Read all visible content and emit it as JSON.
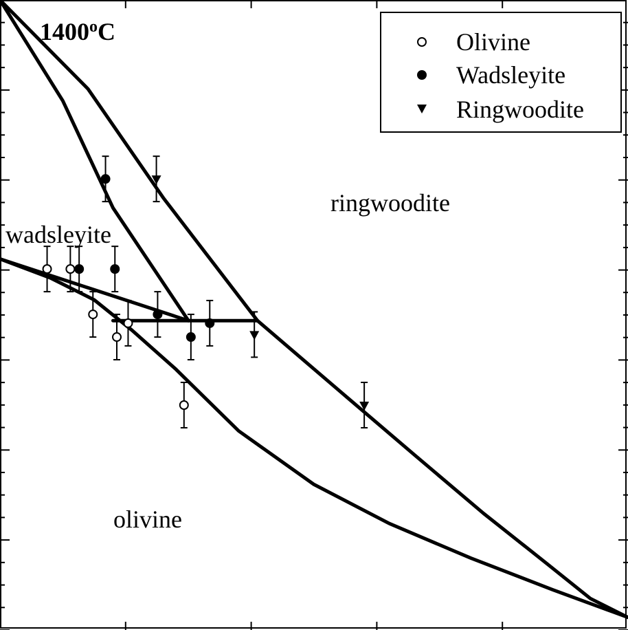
{
  "chart_data": {
    "type": "scatter",
    "title_prefix": "1400",
    "title_superscript": "o",
    "title_suffix": "C",
    "xlabel": "",
    "ylabel": "",
    "x_range": [
      0.0,
      1.0
    ],
    "y_range": [
      0.0,
      1.0
    ],
    "legend": {
      "placement": "top-right",
      "entries": [
        {
          "label": "Olivine",
          "marker": "open-circle"
        },
        {
          "label": "Wadsleyite",
          "marker": "filled-circle"
        },
        {
          "label": "Ringwoodite",
          "marker": "filled-down-triangle"
        }
      ]
    },
    "region_labels": {
      "wadsleyite": "wadsleyite",
      "ringwoodite": "ringwoodite",
      "olivine": "olivine"
    },
    "boundaries": [
      {
        "name": "olivine-wadsleyite-upper",
        "points": [
          [
            0.0,
            0.589
          ],
          [
            0.3,
            0.491
          ]
        ]
      },
      {
        "name": "olivine-wadsleyite-lower",
        "points": [
          [
            0.0,
            0.589
          ],
          [
            0.08,
            0.559
          ],
          [
            0.15,
            0.524
          ],
          [
            0.21,
            0.476
          ],
          [
            0.28,
            0.414
          ],
          [
            0.38,
            0.316
          ],
          [
            0.5,
            0.231
          ],
          [
            0.62,
            0.169
          ],
          [
            0.75,
            0.114
          ],
          [
            0.88,
            0.064
          ],
          [
            1.0,
            0.02
          ]
        ]
      },
      {
        "name": "wadsleyite-ringwoodite-left",
        "points": [
          [
            0.0,
            1.0
          ],
          [
            0.1,
            0.84
          ],
          [
            0.18,
            0.67
          ],
          [
            0.3,
            0.491
          ]
        ]
      },
      {
        "name": "wadsleyite-ringwoodite-right",
        "points": [
          [
            0.0,
            1.0
          ],
          [
            0.14,
            0.859
          ],
          [
            0.26,
            0.686
          ],
          [
            0.41,
            0.491
          ]
        ]
      },
      {
        "name": "three-phase-tie-line",
        "points": [
          [
            0.18,
            0.491
          ],
          [
            0.41,
            0.491
          ]
        ]
      },
      {
        "name": "olivine-ringwoodite",
        "points": [
          [
            0.41,
            0.491
          ],
          [
            0.54,
            0.38
          ],
          [
            0.66,
            0.278
          ],
          [
            0.77,
            0.185
          ],
          [
            0.87,
            0.106
          ],
          [
            0.94,
            0.05
          ],
          [
            1.0,
            0.02
          ]
        ]
      }
    ],
    "series": [
      {
        "name": "Olivine",
        "marker": "open-circle",
        "points": [
          {
            "x": 0.075,
            "y": 0.573,
            "err": 0.036
          },
          {
            "x": 0.112,
            "y": 0.573,
            "err": 0.036
          },
          {
            "x": 0.148,
            "y": 0.501,
            "err": 0.036
          },
          {
            "x": 0.186,
            "y": 0.465,
            "err": 0.036
          },
          {
            "x": 0.204,
            "y": 0.487,
            "err": 0.036
          },
          {
            "x": 0.293,
            "y": 0.357,
            "err": 0.036
          }
        ]
      },
      {
        "name": "Wadsleyite",
        "marker": "filled-circle",
        "points": [
          {
            "x": 0.168,
            "y": 0.716,
            "err": 0.036
          },
          {
            "x": 0.126,
            "y": 0.573,
            "err": 0.036
          },
          {
            "x": 0.183,
            "y": 0.573,
            "err": 0.036
          },
          {
            "x": 0.251,
            "y": 0.501,
            "err": 0.036
          },
          {
            "x": 0.334,
            "y": 0.487,
            "err": 0.036
          },
          {
            "x": 0.304,
            "y": 0.465,
            "err": 0.036
          }
        ]
      },
      {
        "name": "Ringwoodite",
        "marker": "filled-down-triangle",
        "points": [
          {
            "x": 0.249,
            "y": 0.716,
            "err": 0.036
          },
          {
            "x": 0.405,
            "y": 0.469,
            "err": 0.036
          },
          {
            "x": 0.58,
            "y": 0.357,
            "err": 0.036
          }
        ]
      }
    ],
    "x_ticks": [
      0.2,
      0.4,
      0.6,
      0.8
    ],
    "y_ticks": [
      0.0,
      0.1429,
      0.2857,
      0.4286,
      0.5714,
      0.7143,
      0.8571
    ],
    "grid": false
  }
}
